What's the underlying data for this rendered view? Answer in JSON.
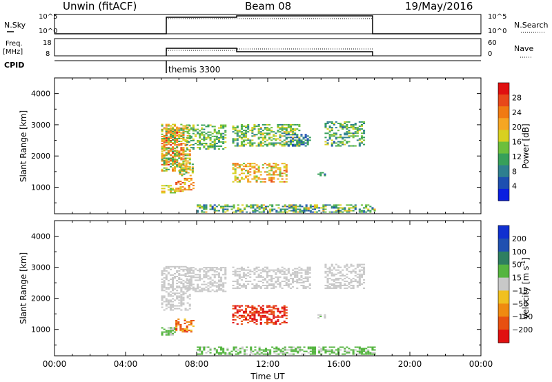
{
  "header": {
    "station": "Unwin (fitACF)",
    "beam": "Beam 08",
    "date": "19/May/2016"
  },
  "strip_panels": {
    "sky": {
      "left_label": "N.Sky",
      "right_label": "N.Search",
      "left_ticks": [
        "10^5",
        "10^0"
      ],
      "right_ticks": [
        "10^5",
        "10^0"
      ]
    },
    "freq": {
      "left_label_line1": "Freq.",
      "left_label_line2": "[MHz]",
      "right_label": "Nave",
      "left_ticks": [
        "18",
        "8"
      ],
      "right_ticks": [
        "60",
        "0"
      ]
    },
    "cpid": {
      "label": "CPID",
      "mode": "themis 3300"
    }
  },
  "chart_data": [
    {
      "type": "heatmap",
      "title": "Power",
      "ylabel": "Slant Range [km]",
      "xlabel": "",
      "x_unit": "hours UT",
      "xlim": [
        0,
        24
      ],
      "ylim": [
        150,
        4500
      ],
      "y_ticks": [
        1000,
        2000,
        3000,
        4000
      ],
      "colorbar": {
        "label": "Power [dB]",
        "range": [
          0,
          32
        ],
        "ticks": [
          4,
          8,
          12,
          16,
          20,
          24,
          28
        ],
        "colors": [
          "#0a1ee0",
          "#1d4fb0",
          "#2e7f8f",
          "#37a05a",
          "#6cbf3c",
          "#d8d020",
          "#f5a623",
          "#f07a12",
          "#e8481a",
          "#e01010"
        ]
      },
      "echo_regions": [
        {
          "t0": 6.0,
          "t1": 7.3,
          "r0": 1700,
          "r1": 2900,
          "values": [
            20,
            30
          ]
        },
        {
          "t0": 6.0,
          "t1": 7.6,
          "r0": 1500,
          "r1": 3000,
          "values": [
            10,
            24
          ]
        },
        {
          "t0": 6.0,
          "t1": 6.8,
          "r0": 800,
          "r1": 1050,
          "values": [
            14,
            20
          ]
        },
        {
          "t0": 6.8,
          "t1": 7.8,
          "r0": 850,
          "r1": 1300,
          "values": [
            16,
            28
          ]
        },
        {
          "t0": 7.0,
          "t1": 7.8,
          "r0": 1350,
          "r1": 1800,
          "values": [
            10,
            22
          ]
        },
        {
          "t0": 7.4,
          "t1": 9.6,
          "r0": 2200,
          "r1": 3000,
          "values": [
            8,
            18
          ]
        },
        {
          "t0": 10.0,
          "t1": 13.8,
          "r0": 2300,
          "r1": 3000,
          "values": [
            8,
            20
          ]
        },
        {
          "t0": 10.0,
          "t1": 13.0,
          "r0": 1150,
          "r1": 1750,
          "values": [
            14,
            26
          ]
        },
        {
          "t0": 13.0,
          "t1": 14.4,
          "r0": 2300,
          "r1": 2700,
          "values": [
            4,
            12
          ]
        },
        {
          "t0": 15.2,
          "t1": 17.4,
          "r0": 2300,
          "r1": 3100,
          "values": [
            6,
            18
          ]
        },
        {
          "t0": 14.8,
          "t1": 15.2,
          "r0": 1350,
          "r1": 1450,
          "values": [
            6,
            12
          ]
        },
        {
          "t0": 8.0,
          "t1": 18.0,
          "r0": 180,
          "r1": 450,
          "values": [
            4,
            20
          ]
        }
      ]
    },
    {
      "type": "heatmap",
      "title": "Velocity",
      "ylabel": "Slant Range [km]",
      "xlabel": "Time UT",
      "x_unit": "hours UT",
      "xlim": [
        0,
        24
      ],
      "ylim": [
        150,
        4500
      ],
      "x_ticks": [
        "00:00",
        "04:00",
        "08:00",
        "12:00",
        "16:00",
        "20:00",
        "00:00"
      ],
      "y_ticks": [
        1000,
        2000,
        3000,
        4000
      ],
      "colorbar": {
        "label": "Velocity [m s^-1]",
        "range": [
          -250,
          250
        ],
        "ticks": [
          "200",
          "100",
          "50",
          "15",
          "−15",
          "−50",
          "−100",
          "−200"
        ],
        "colors": [
          "#1030d0",
          "#2050b0",
          "#2e7f60",
          "#55b540",
          "#c8c8c8",
          "#f0c020",
          "#f08a10",
          "#e85010",
          "#e01010"
        ]
      },
      "echo_regions": [
        {
          "t0": 6.0,
          "t1": 7.6,
          "r0": 1600,
          "r1": 3000,
          "values": [
            -10,
            12
          ]
        },
        {
          "t0": 6.0,
          "t1": 6.8,
          "r0": 800,
          "r1": 1050,
          "values": [
            20,
            60
          ]
        },
        {
          "t0": 6.8,
          "t1": 7.8,
          "r0": 900,
          "r1": 1350,
          "values": [
            -200,
            -60
          ]
        },
        {
          "t0": 7.4,
          "t1": 9.6,
          "r0": 2200,
          "r1": 3000,
          "values": [
            -12,
            12
          ]
        },
        {
          "t0": 10.0,
          "t1": 14.4,
          "r0": 2300,
          "r1": 3000,
          "values": [
            -12,
            12
          ]
        },
        {
          "t0": 10.0,
          "t1": 13.0,
          "r0": 1150,
          "r1": 1750,
          "values": [
            -250,
            -150
          ]
        },
        {
          "t0": 15.2,
          "t1": 17.4,
          "r0": 2300,
          "r1": 3100,
          "values": [
            -12,
            12
          ]
        },
        {
          "t0": 14.8,
          "t1": 15.2,
          "r0": 1350,
          "r1": 1450,
          "values": [
            -12,
            40
          ]
        },
        {
          "t0": 8.0,
          "t1": 18.0,
          "r0": 180,
          "r1": 450,
          "values": [
            10,
            80
          ]
        }
      ]
    }
  ]
}
